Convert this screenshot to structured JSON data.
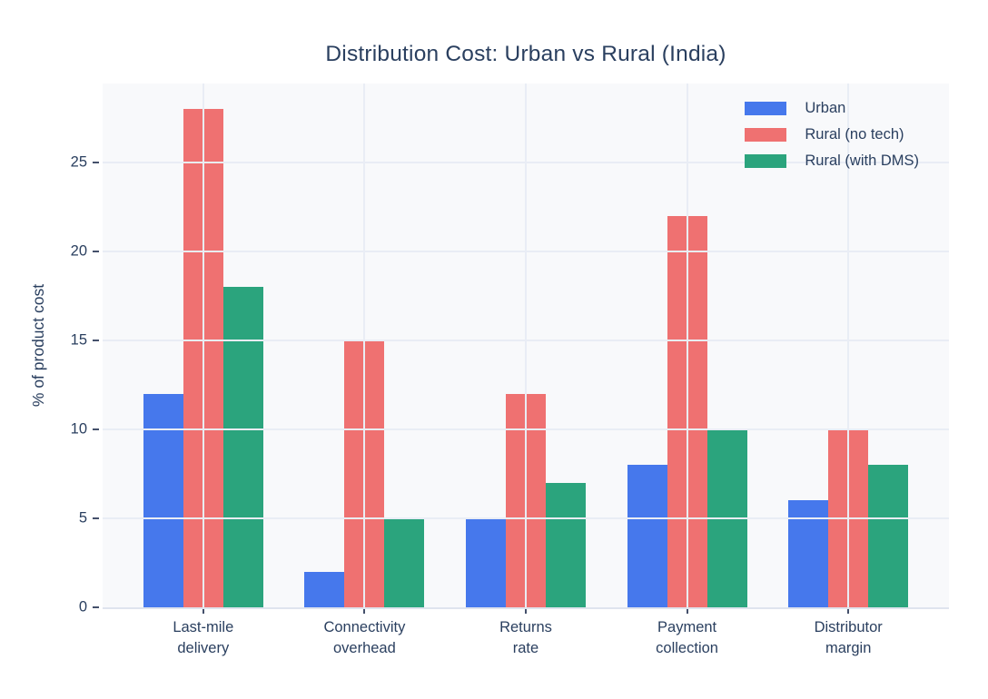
{
  "title": "Distribution Cost: Urban vs Rural (India)",
  "chart_data": {
    "type": "bar",
    "title": "Distribution Cost: Urban vs Rural (India)",
    "categories": [
      "Last-mile delivery",
      "Connectivity overhead",
      "Returns rate",
      "Payment collection",
      "Distributor margin"
    ],
    "category_lines": [
      [
        "Last-mile",
        "delivery"
      ],
      [
        "Connectivity",
        "overhead"
      ],
      [
        "Returns",
        "rate"
      ],
      [
        "Payment",
        "collection"
      ],
      [
        "Distributor",
        "margin"
      ]
    ],
    "series": [
      {
        "name": "Urban",
        "color": "#4678EC",
        "values": [
          12,
          2,
          5,
          8,
          6
        ]
      },
      {
        "name": "Rural (no tech)",
        "color": "#EF7171",
        "values": [
          28,
          15,
          12,
          22,
          10
        ]
      },
      {
        "name": "Rural (with DMS)",
        "color": "#2BA47D",
        "values": [
          18,
          5,
          7,
          10,
          8
        ]
      }
    ],
    "xlabel": "",
    "ylabel": "% of product cost",
    "yticks": [
      0,
      5,
      10,
      15,
      20,
      25
    ],
    "ylim": [
      0,
      29.44
    ],
    "grid": true,
    "legend_position": "top-right"
  },
  "colors": {
    "text": "#2A3F5F",
    "plot_bg": "#F8F9FB",
    "grid": "#E9EDF5",
    "axis_line": "#DFE4EE",
    "tick": "#44506B",
    "page_bg": "#FFFFFF"
  }
}
